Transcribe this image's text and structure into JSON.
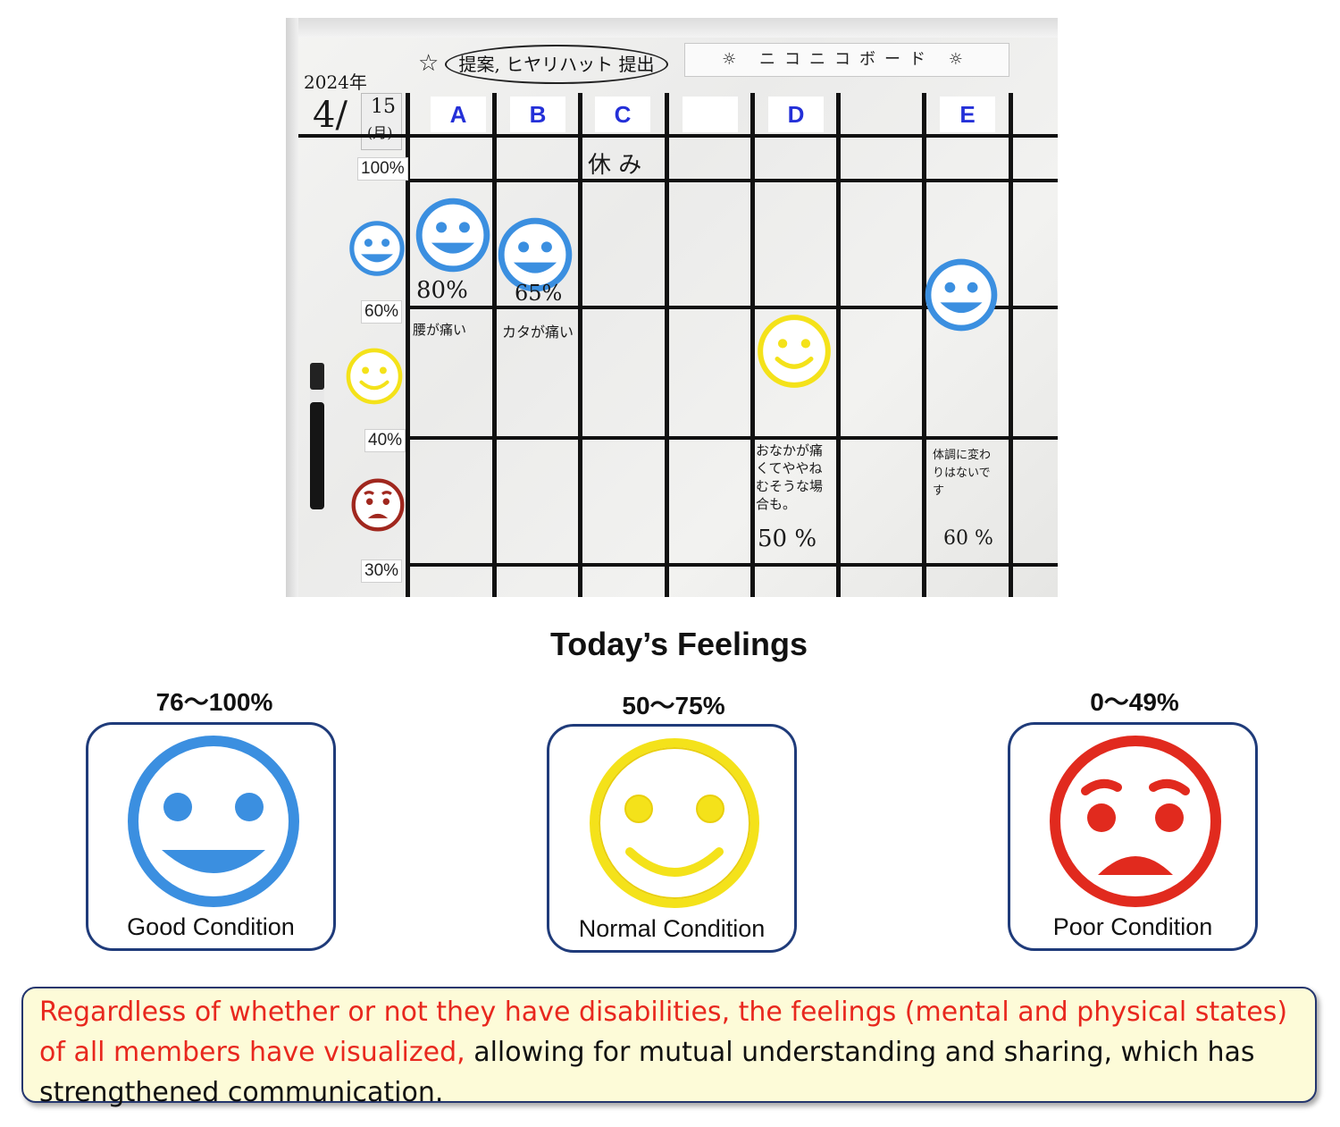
{
  "board": {
    "oval_note": "提案, ヒヤリハット 提出",
    "title_strip": "☼ ニコニコボード ☼",
    "year": "2024年",
    "date_month": "4/",
    "date_day": "15",
    "date_weekday": "(月)",
    "columns": [
      "A",
      "B",
      "C",
      "D",
      "E"
    ],
    "percent_tags": [
      "100%",
      "60%",
      "40%",
      "30%"
    ],
    "handwritten": {
      "c_absent": "休 み",
      "a_pct": "80%",
      "b_pct": "65%",
      "a_note": "腰が痛い",
      "b_note": "カタが痛い",
      "d_note": "おなかが痛くてややねむそうな場合も。",
      "d_pct": "50 %",
      "e_note": "体調に変わりはないです",
      "e_pct": "60 %"
    }
  },
  "legend": {
    "title": "Today’s Feelings",
    "items": [
      {
        "range": "76～100%",
        "label": "Good Condition",
        "face": "smile-big-icon",
        "color": "#3b8fe0"
      },
      {
        "range": "50～75%",
        "label": "Normal Condition",
        "face": "smile-icon",
        "color": "#f4e21a"
      },
      {
        "range": "0～49%",
        "label": "Poor Condition",
        "face": "sad-icon",
        "color": "#e12a1e"
      }
    ]
  },
  "note": {
    "red_text": "Regardless of whether or not they have disabilities, the feelings (mental and physical states) of all members have visualized,",
    "black_text": " allowing for mutual understanding and sharing, which has strengthened communication."
  }
}
